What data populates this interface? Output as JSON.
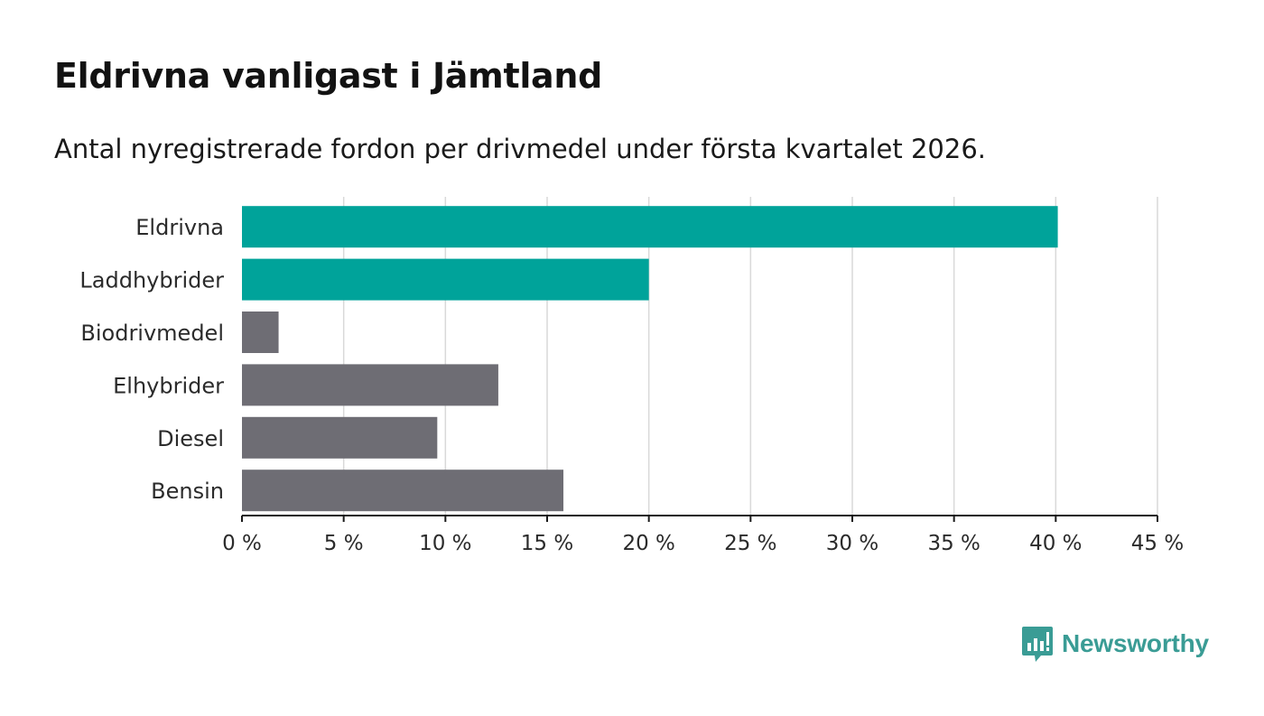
{
  "chart_data": {
    "type": "bar",
    "orientation": "horizontal",
    "title": "Eldrivna vanligast i Jämtland",
    "subtitle": "Antal nyregistrerade fordon per drivmedel under första kvartalet 2026.",
    "categories": [
      "Eldrivna",
      "Laddhybrider",
      "Biodrivmedel",
      "Elhybrider",
      "Diesel",
      "Bensin"
    ],
    "values": [
      40.1,
      20.0,
      1.8,
      12.6,
      9.6,
      15.8
    ],
    "highlight": [
      true,
      true,
      false,
      false,
      false,
      false
    ],
    "xlim": [
      0,
      45
    ],
    "xticks": [
      0,
      5,
      10,
      15,
      20,
      25,
      30,
      35,
      40,
      45
    ],
    "tick_suffix": " %",
    "xlabel": "",
    "ylabel": "",
    "grid": true
  },
  "colors": {
    "highlight": "#00a39a",
    "default": "#6e6d74",
    "grid": "#d9d9d9",
    "axis": "#1a1a1a",
    "brand": "#3a9c95"
  },
  "brand": {
    "name": "Newsworthy",
    "icon": "bar-chart-speech-bubble-icon"
  }
}
